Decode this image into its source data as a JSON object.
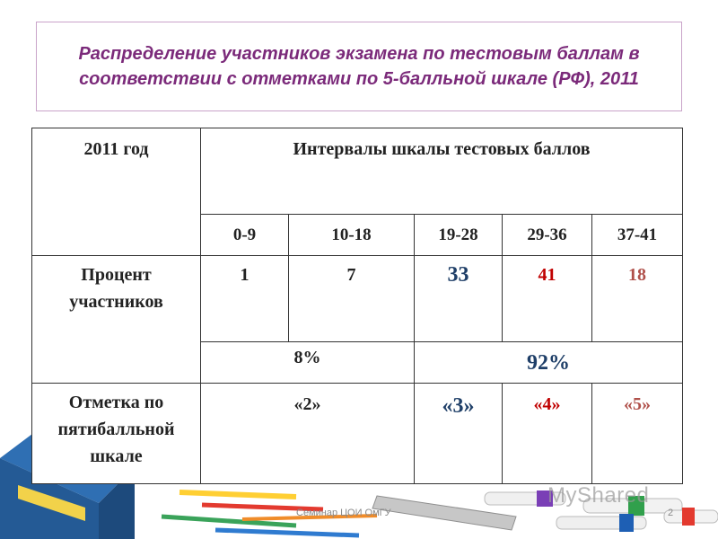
{
  "title": "Распределение участников экзамена по тестовым баллам в соответствии с отметками по 5-балльной шкале (РФ), 2011",
  "table": {
    "year_header": "2011 год",
    "intervals_header": "Интервалы шкалы тестовых баллов",
    "ranges": [
      "0-9",
      "10-18",
      "19-28",
      "29-36",
      "37-41"
    ],
    "percent_label": "Процент участников",
    "percent_values": [
      "1",
      "7",
      "33",
      "41",
      "18"
    ],
    "summary_low": "8%",
    "summary_high": "92%",
    "mark_label": "Отметка по пятибалльной шкале",
    "marks": [
      "«2»",
      "«3»",
      "«4»",
      "«5»"
    ]
  },
  "footer": {
    "seminar": "Семинар ЦОИ ОмГУ",
    "page_number": "2",
    "watermark": "MyShared"
  }
}
